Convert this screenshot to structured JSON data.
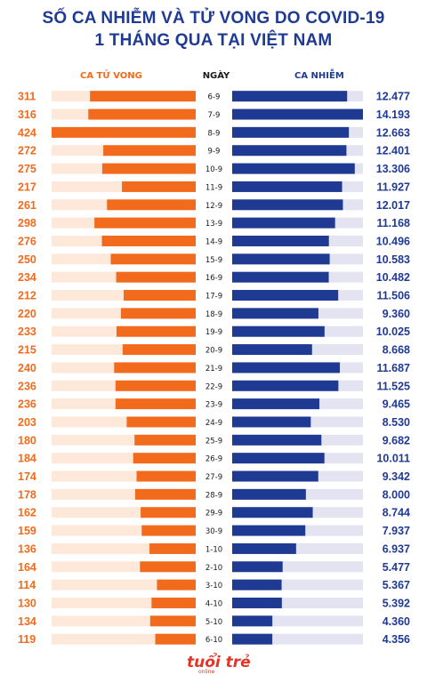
{
  "title_line1": "SỐ CA NHIỄM VÀ TỬ VONG DO COVID-19",
  "title_line2": "1 THÁNG QUA TẠI VIỆT NAM",
  "logo_text": "tuổi trẻ",
  "logo_sub": "online",
  "colors": {
    "deaths": "#f26b1d",
    "deaths_track": "#fde8d9",
    "cases": "#1f3a93",
    "cases_track": "#e3e3f1",
    "title": "#1f3a93"
  },
  "chart_data": {
    "type": "bar",
    "title": "SỐ CA NHIỄM VÀ TỬ VONG DO COVID-19 1 THÁNG QUA TẠI VIỆT NAM",
    "category_label": "NGÀY",
    "categories": [
      "6-9",
      "7-9",
      "8-9",
      "9-9",
      "10-9",
      "11-9",
      "12-9",
      "13-9",
      "14-9",
      "15-9",
      "16-9",
      "17-9",
      "18-9",
      "19-9",
      "20-9",
      "21-9",
      "22-9",
      "23-9",
      "24-9",
      "25-9",
      "26-9",
      "27-9",
      "28-9",
      "29-9",
      "30-9",
      "1-10",
      "2-10",
      "3-10",
      "4-10",
      "5-10",
      "6-10"
    ],
    "series": [
      {
        "name": "CA TỬ VONG",
        "values": [
          311,
          316,
          424,
          272,
          275,
          217,
          261,
          298,
          276,
          250,
          234,
          212,
          220,
          233,
          215,
          240,
          236,
          236,
          203,
          180,
          184,
          174,
          178,
          162,
          159,
          136,
          164,
          114,
          130,
          134,
          119
        ],
        "labels": [
          "311",
          "316",
          "424",
          "272",
          "275",
          "217",
          "261",
          "298",
          "276",
          "250",
          "234",
          "212",
          "220",
          "233",
          "215",
          "240",
          "236",
          "236",
          "203",
          "180",
          "184",
          "174",
          "178",
          "162",
          "159",
          "136",
          "164",
          "114",
          "130",
          "134",
          "119"
        ]
      },
      {
        "name": "CA NHIỄM",
        "values": [
          12477,
          14193,
          12663,
          12401,
          13306,
          11927,
          12017,
          11168,
          10496,
          10583,
          10482,
          11506,
          9360,
          10025,
          8668,
          11687,
          11525,
          9465,
          8530,
          9682,
          10011,
          9342,
          8000,
          8744,
          7937,
          6937,
          5477,
          5367,
          5392,
          4360,
          4356
        ],
        "labels": [
          "12.477",
          "14.193",
          "12.663",
          "12.401",
          "13.306",
          "11.927",
          "12.017",
          "11.168",
          "10.496",
          "10.583",
          "10.482",
          "11.506",
          "9.360",
          "10.025",
          "8.668",
          "11.687",
          "11.525",
          "9.465",
          "8.530",
          "9.682",
          "10.011",
          "9.342",
          "8.000",
          "8.744",
          "7.937",
          "6.937",
          "5.477",
          "5.367",
          "5.392",
          "4.360",
          "4.356"
        ]
      }
    ],
    "deaths_max": 424,
    "cases_max": 14193
  }
}
